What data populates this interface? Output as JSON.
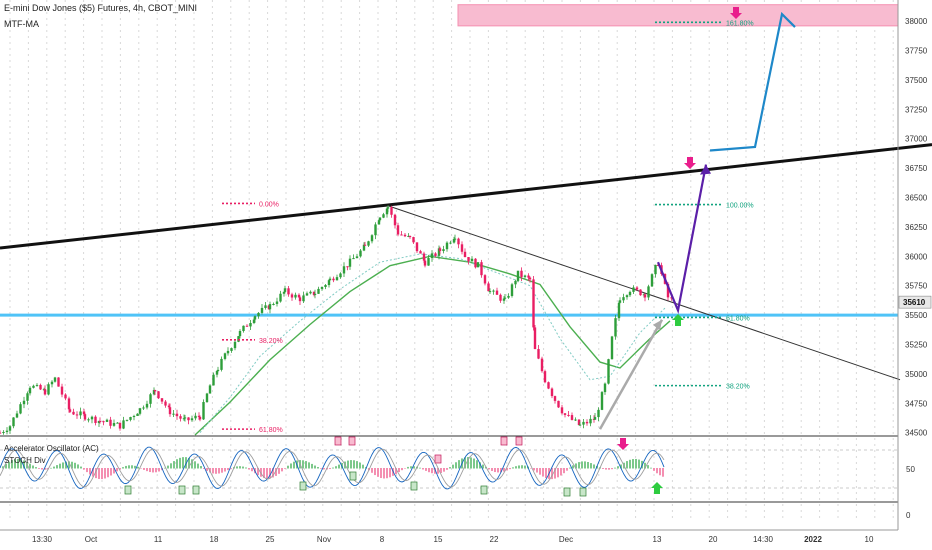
{
  "header": {
    "symbol": "E-mini Dow Jones ($5) Futures, 4h, CBOT_MINI",
    "indicator": "MTF-MA"
  },
  "oscillators": {
    "ac_label": "Accelerator Oscillator (AC)",
    "stoch_label": "STOCH Div",
    "axis": [
      "50",
      "0"
    ]
  },
  "colors": {
    "up": "#26a69a",
    "up_body": "#2e9e3a",
    "down": "#e91e63",
    "trendline": "#111111",
    "support": "#4fc3f7",
    "target_zone": "#f8bbd0",
    "projection_purple": "#5b1fa8",
    "projection_blue": "#1e88c9",
    "ma_green": "#4caf50",
    "fib_red": "#e91e63",
    "fib_teal": "#11a37f",
    "arrow_gray": "#aaaaaa"
  },
  "chart_data": {
    "type": "candlestick",
    "title": "E-mini Dow Jones ($5) Futures, 4h, CBOT_MINI",
    "y_ticks": [
      "38000",
      "37750",
      "37500",
      "37250",
      "37000",
      "36750",
      "36500",
      "36250",
      "36000",
      "35750",
      "35500",
      "35250",
      "35000",
      "34750",
      "34500"
    ],
    "last_price": "35610",
    "x_ticks": [
      "13:30",
      "Oct",
      "11",
      "18",
      "25",
      "Nov",
      "8",
      "15",
      "22",
      "Dec",
      "13",
      "20",
      "14:30",
      "2022",
      "10"
    ],
    "ylim": [
      34480,
      38180
    ],
    "support_level": 35500,
    "path": [
      {
        "x": 0,
        "y": 34500
      },
      {
        "x": 10,
        "y": 34560
      },
      {
        "x": 30,
        "y": 34900
      },
      {
        "x": 45,
        "y": 34850
      },
      {
        "x": 55,
        "y": 34960
      },
      {
        "x": 70,
        "y": 34680
      },
      {
        "x": 85,
        "y": 34640
      },
      {
        "x": 100,
        "y": 34600
      },
      {
        "x": 120,
        "y": 34560
      },
      {
        "x": 140,
        "y": 34700
      },
      {
        "x": 155,
        "y": 34860
      },
      {
        "x": 170,
        "y": 34680
      },
      {
        "x": 185,
        "y": 34600
      },
      {
        "x": 200,
        "y": 34640
      },
      {
        "x": 210,
        "y": 34900
      },
      {
        "x": 218,
        "y": 35050
      },
      {
        "x": 228,
        "y": 35200
      },
      {
        "x": 240,
        "y": 35350
      },
      {
        "x": 255,
        "y": 35500
      },
      {
        "x": 270,
        "y": 35580
      },
      {
        "x": 285,
        "y": 35700
      },
      {
        "x": 300,
        "y": 35640
      },
      {
        "x": 315,
        "y": 35690
      },
      {
        "x": 330,
        "y": 35800
      },
      {
        "x": 350,
        "y": 35950
      },
      {
        "x": 365,
        "y": 36080
      },
      {
        "x": 380,
        "y": 36350
      },
      {
        "x": 388,
        "y": 36420
      },
      {
        "x": 398,
        "y": 36200
      },
      {
        "x": 410,
        "y": 36150
      },
      {
        "x": 425,
        "y": 35950
      },
      {
        "x": 440,
        "y": 36050
      },
      {
        "x": 455,
        "y": 36180
      },
      {
        "x": 465,
        "y": 36000
      },
      {
        "x": 478,
        "y": 35920
      },
      {
        "x": 490,
        "y": 35700
      },
      {
        "x": 505,
        "y": 35620
      },
      {
        "x": 518,
        "y": 35850
      },
      {
        "x": 530,
        "y": 35800
      },
      {
        "x": 535,
        "y": 35200
      },
      {
        "x": 545,
        "y": 34950
      },
      {
        "x": 555,
        "y": 34780
      },
      {
        "x": 565,
        "y": 34650
      },
      {
        "x": 580,
        "y": 34560
      },
      {
        "x": 595,
        "y": 34620
      },
      {
        "x": 605,
        "y": 34900
      },
      {
        "x": 612,
        "y": 35300
      },
      {
        "x": 620,
        "y": 35650
      },
      {
        "x": 630,
        "y": 35720
      },
      {
        "x": 645,
        "y": 35680
      },
      {
        "x": 658,
        "y": 35950
      },
      {
        "x": 668,
        "y": 35650
      },
      {
        "x": 675,
        "y": 35610
      }
    ],
    "ma_fast": [
      {
        "x": 200,
        "y": 34500
      },
      {
        "x": 230,
        "y": 34800
      },
      {
        "x": 260,
        "y": 35150
      },
      {
        "x": 300,
        "y": 35450
      },
      {
        "x": 340,
        "y": 35720
      },
      {
        "x": 380,
        "y": 35950
      },
      {
        "x": 420,
        "y": 36020
      },
      {
        "x": 460,
        "y": 35980
      },
      {
        "x": 500,
        "y": 35850
      },
      {
        "x": 530,
        "y": 35750
      },
      {
        "x": 560,
        "y": 35300
      },
      {
        "x": 590,
        "y": 34950
      },
      {
        "x": 610,
        "y": 34980
      },
      {
        "x": 640,
        "y": 35350
      },
      {
        "x": 665,
        "y": 35560
      }
    ],
    "ma_slow": [
      {
        "x": 195,
        "y": 34480
      },
      {
        "x": 230,
        "y": 34760
      },
      {
        "x": 270,
        "y": 35120
      },
      {
        "x": 310,
        "y": 35420
      },
      {
        "x": 350,
        "y": 35700
      },
      {
        "x": 390,
        "y": 35920
      },
      {
        "x": 430,
        "y": 36000
      },
      {
        "x": 470,
        "y": 35950
      },
      {
        "x": 510,
        "y": 35850
      },
      {
        "x": 540,
        "y": 35760
      },
      {
        "x": 570,
        "y": 35400
      },
      {
        "x": 600,
        "y": 35100
      },
      {
        "x": 620,
        "y": 35050
      },
      {
        "x": 650,
        "y": 35300
      },
      {
        "x": 670,
        "y": 35450
      }
    ],
    "fib_left": [
      {
        "label": "0.00%",
        "price": 36450,
        "color": "fib_red"
      },
      {
        "label": "38.20%",
        "price": 35290,
        "color": "fib_red"
      },
      {
        "label": "61.80%",
        "price": 34530,
        "color": "fib_red"
      }
    ],
    "fib_right": [
      {
        "label": "161.80%",
        "price": 37990,
        "color": "fib_teal"
      },
      {
        "label": "100.00%",
        "price": 36440,
        "color": "fib_teal"
      },
      {
        "label": "61.80%",
        "price": 35480,
        "color": "fib_teal"
      },
      {
        "label": "38.20%",
        "price": 34900,
        "color": "fib_teal"
      }
    ],
    "target_zone": {
      "from": 37960,
      "to": 38140
    },
    "projection_purple": [
      {
        "x": 658,
        "y": 35950
      },
      {
        "x": 678,
        "y": 35540
      },
      {
        "x": 706,
        "y": 36780
      }
    ],
    "projection_blue": [
      {
        "x": 710,
        "y": 36900
      },
      {
        "x": 755,
        "y": 36930
      },
      {
        "x": 782,
        "y": 38060
      },
      {
        "x": 795,
        "y": 37950
      }
    ],
    "gray_arrow": [
      {
        "x": 600,
        "y": 34530
      },
      {
        "x": 662,
        "y": 35460
      }
    ],
    "trend_upper": [
      {
        "x": 0,
        "y": 36070
      },
      {
        "x": 932,
        "y": 36950
      }
    ],
    "trend_down": [
      {
        "x": 388,
        "y": 36430
      },
      {
        "x": 900,
        "y": 34950
      }
    ]
  }
}
